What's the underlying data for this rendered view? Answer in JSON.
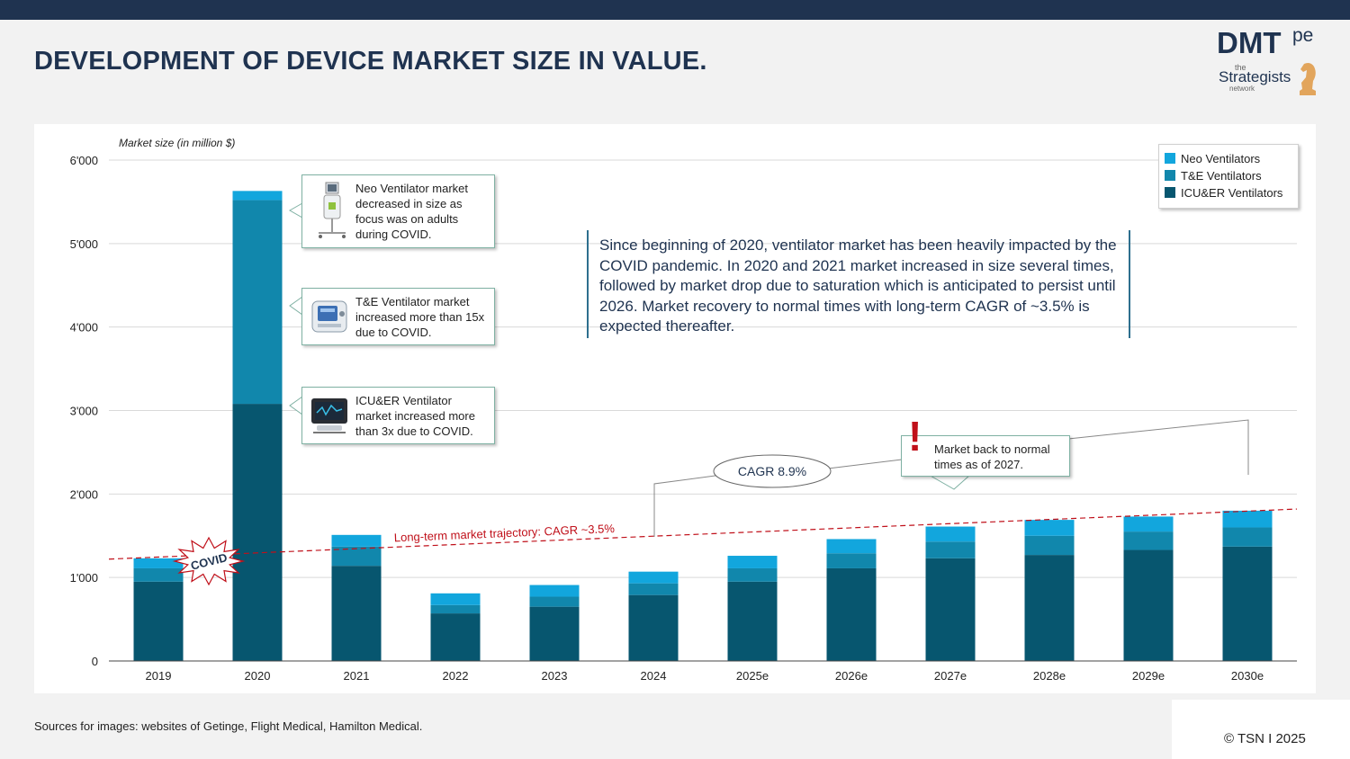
{
  "header": {
    "title": "DEVELOPMENT OF DEVICE MARKET SIZE IN VALUE.",
    "logo_main": "DMT",
    "logo_super": "pe",
    "logo_the": "the",
    "logo_strategists": "Strategists",
    "logo_network": "network"
  },
  "colors": {
    "neo": "#12a6dd",
    "te": "#1187ac",
    "icu": "#07566f",
    "navy": "#1f3350",
    "trend": "#c0101a"
  },
  "chart_data": {
    "type": "bar",
    "stacked": true,
    "ylabel": "Market size (in million $)",
    "ylim": [
      0,
      6000
    ],
    "yticks": [
      0,
      1000,
      2000,
      3000,
      4000,
      5000,
      6000
    ],
    "ytick_labels": [
      "0",
      "1'000",
      "2'000",
      "3'000",
      "4'000",
      "5'000",
      "6'000"
    ],
    "categories": [
      "2019",
      "2020",
      "2021",
      "2022",
      "2023",
      "2024",
      "2025e",
      "2026e",
      "2027e",
      "2028e",
      "2029e",
      "2030e"
    ],
    "series": [
      {
        "name": "ICU&ER Ventilators",
        "color": "#07566f",
        "values": [
          950,
          3080,
          1140,
          570,
          650,
          790,
          950,
          1110,
          1230,
          1270,
          1330,
          1370
        ]
      },
      {
        "name": "T&E Ventilators",
        "color": "#1187ac",
        "values": [
          160,
          2440,
          230,
          100,
          120,
          140,
          160,
          180,
          200,
          230,
          220,
          230
        ]
      },
      {
        "name": "Neo Ventilators",
        "color": "#12a6dd",
        "values": [
          120,
          110,
          140,
          140,
          140,
          140,
          150,
          170,
          180,
          190,
          180,
          200
        ]
      }
    ],
    "legend": [
      "Neo Ventilators",
      "T&E Ventilators",
      "ICU&ER Ventilators"
    ],
    "legend_position": "top-right",
    "grid": true,
    "trend_line": {
      "label": "Long-term market trajectory: CAGR ~3.5%",
      "start": 1220,
      "end": 1820
    },
    "annotations": {
      "covid": "COVID",
      "cagr": "CAGR 8.9%"
    }
  },
  "callouts": {
    "neo": "Neo Ventilator market decreased in size as focus was on adults during COVID.",
    "te": "T&E Ventilator market increased more than 15x due to COVID.",
    "icu": "ICU&ER Ventilator market increased more than 3x due to COVID.",
    "recovery": "Market back to normal times as of 2027.",
    "exclamation": "!"
  },
  "summary_text": "Since beginning of 2020, ventilator market has been heavily impacted by the COVID pandemic. In 2020 and 2021 market increased in size several times, followed by market drop due to saturation which is anticipated to persist until 2026. Market recovery to normal times with long-term CAGR of ~3.5% is expected thereafter.",
  "footer": {
    "source": "Sources for images: websites of Getinge, Flight Medical, Hamilton Medical.",
    "copyright": "© TSN I 2025"
  }
}
